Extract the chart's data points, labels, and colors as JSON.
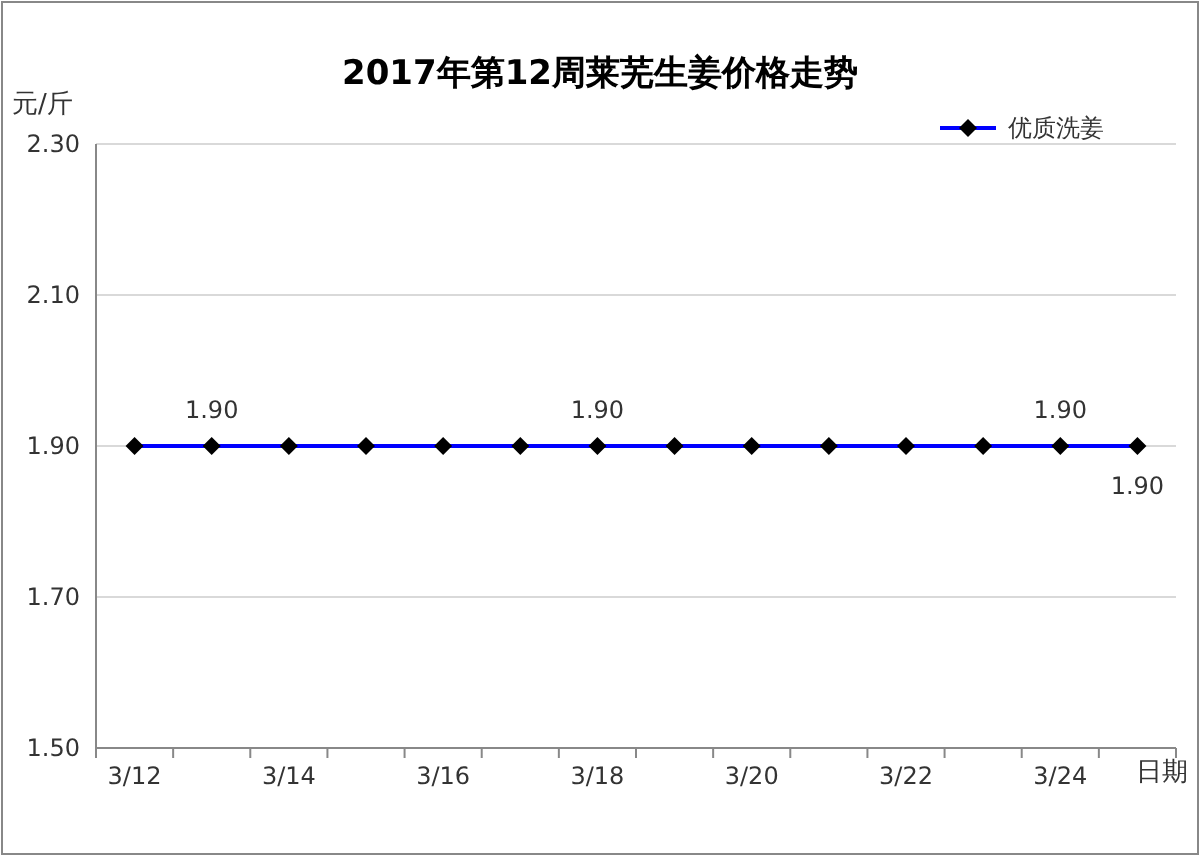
{
  "chart_data": {
    "type": "line",
    "title": "2017年第12周莱芜生姜价格走势",
    "ylabel": "元/斤",
    "xlabel": "日期",
    "categories": [
      "3/12",
      null,
      "3/14",
      null,
      "3/16",
      null,
      "3/18",
      null,
      "3/20",
      null,
      "3/22",
      null,
      "3/24",
      null
    ],
    "series": [
      {
        "name": "优质洗姜",
        "color": "#0000ff",
        "values": [
          1.9,
          1.9,
          1.9,
          1.9,
          1.9,
          1.9,
          1.9,
          1.9,
          1.9,
          1.9,
          1.9,
          1.9,
          1.9,
          1.9
        ],
        "value_labels": [
          null,
          "1.90",
          null,
          null,
          null,
          null,
          "1.90",
          null,
          null,
          null,
          null,
          null,
          "1.90",
          "1.90"
        ]
      }
    ],
    "ylim": [
      1.5,
      2.3
    ],
    "yticks": [
      {
        "value": 1.5,
        "label": "1.50"
      },
      {
        "value": 1.7,
        "label": "1.70"
      },
      {
        "value": 1.9,
        "label": "1.90"
      },
      {
        "value": 2.1,
        "label": "2.10"
      },
      {
        "value": 2.3,
        "label": "2.30"
      }
    ],
    "grid": "y",
    "legend": "top right",
    "marker": "diamond",
    "line_style": "solid"
  }
}
